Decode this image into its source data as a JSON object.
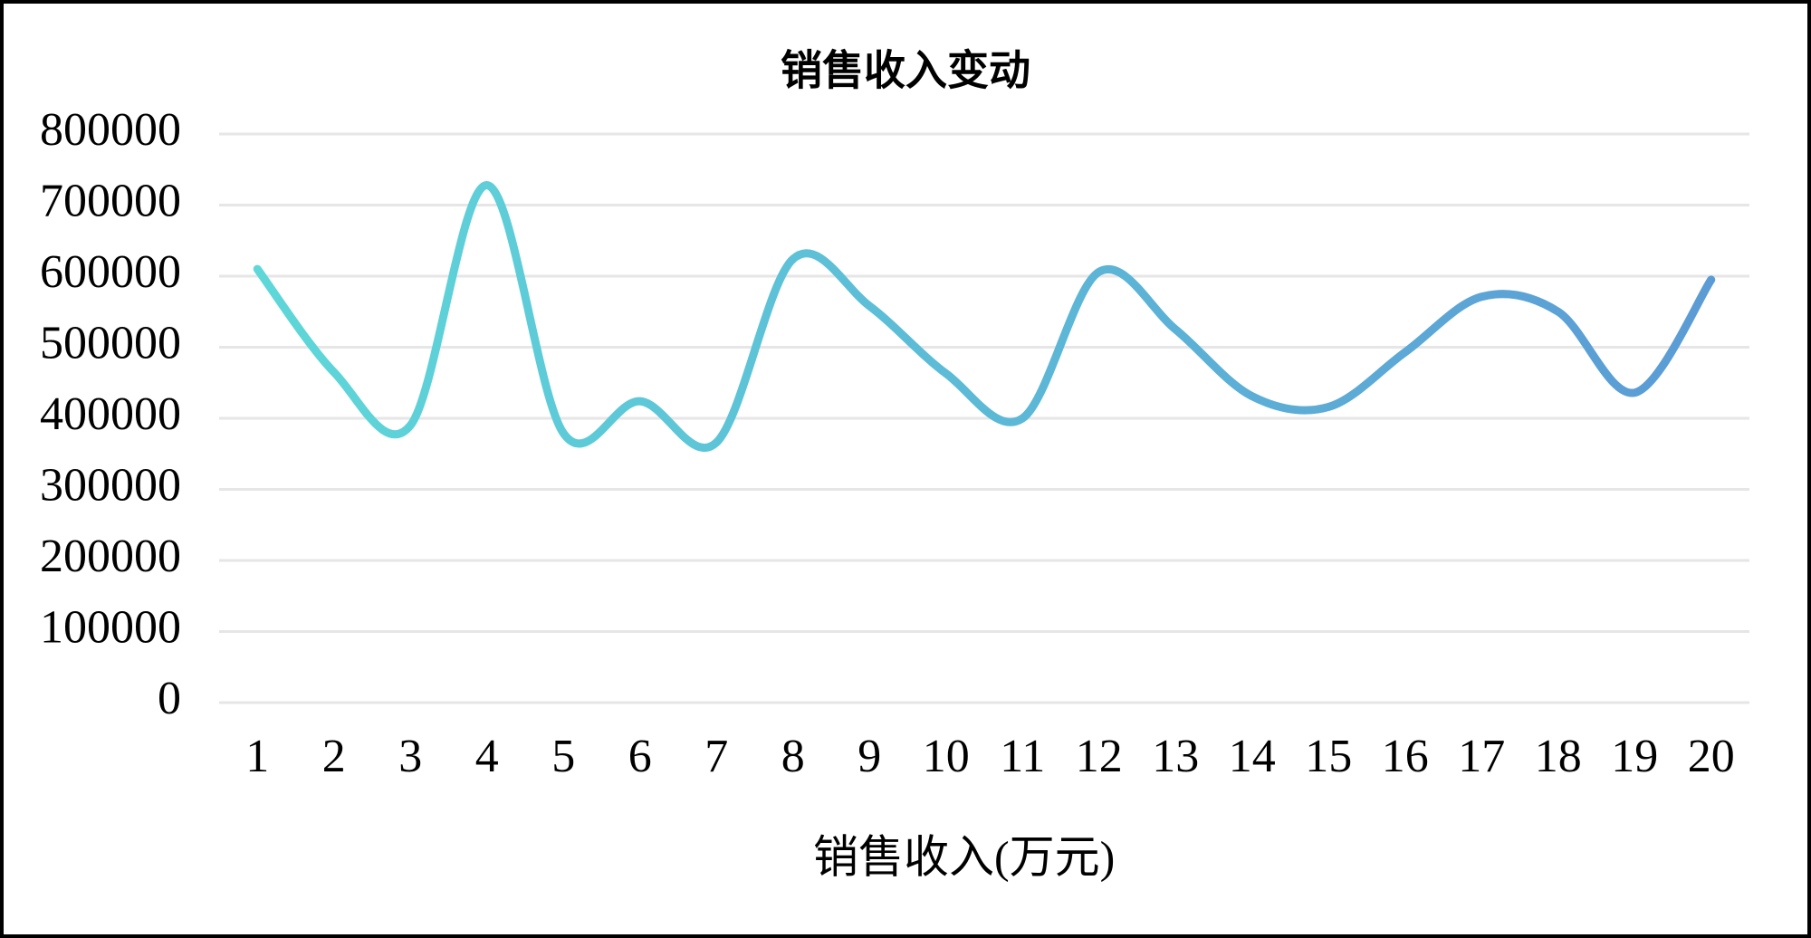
{
  "chart_data": {
    "type": "line",
    "title": "销售收入变动",
    "categories": [
      "1",
      "2",
      "3",
      "4",
      "5",
      "6",
      "7",
      "8",
      "9",
      "10",
      "11",
      "12",
      "13",
      "14",
      "15",
      "16",
      "17",
      "18",
      "19",
      "20"
    ],
    "series": [
      {
        "name": "销售收入(万元)",
        "color": [
          "#5ed8d8",
          "#5b9bd5"
        ],
        "values": [
          610000,
          465000,
          390000,
          728000,
          379000,
          424000,
          366000,
          624000,
          558000,
          463000,
          400000,
          606000,
          525000,
          431000,
          416000,
          493000,
          571000,
          550000,
          436000,
          595000
        ]
      }
    ],
    "ylim": [
      0,
      800000
    ],
    "yticks": [
      0,
      100000,
      200000,
      300000,
      400000,
      500000,
      600000,
      700000,
      800000
    ],
    "grid": true,
    "smooth": true,
    "legend": "bottom"
  }
}
